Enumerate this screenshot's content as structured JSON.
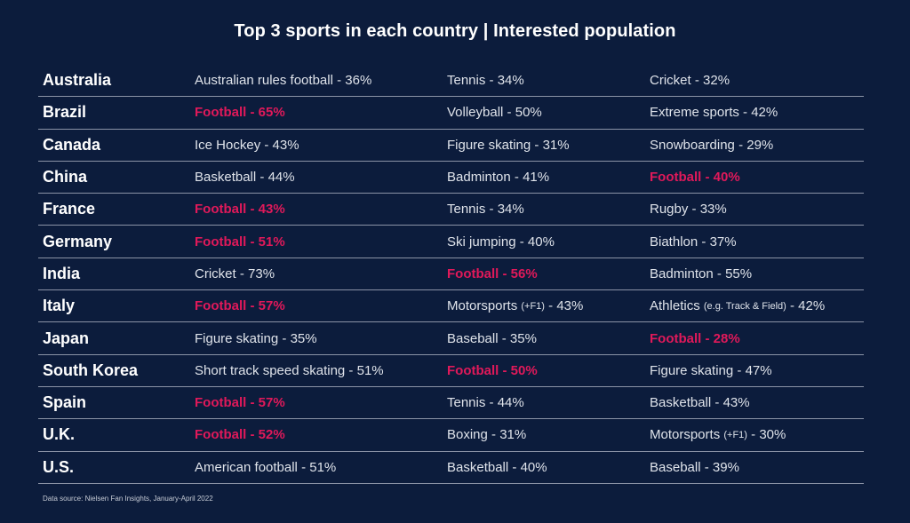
{
  "title": "Top 3 sports in each country | Interested population",
  "source": "Data source: Nielsen Fan Insights, January-April 2022",
  "colors": {
    "background": "#0c1c3c",
    "highlight": "#e0195a",
    "text": "#dfe3ea",
    "divider": "#8b93a6"
  },
  "chart_data": {
    "type": "table",
    "title": "Top 3 sports in each country | Interested population",
    "highlight_rule": "Football entries shown in red",
    "rows": [
      {
        "country": "Australia",
        "cells": [
          {
            "sport": "Australian rules football",
            "note": "",
            "value": "36%",
            "highlight": false
          },
          {
            "sport": "Tennis",
            "note": "",
            "value": "34%",
            "highlight": false
          },
          {
            "sport": "Cricket",
            "note": "",
            "value": "32%",
            "highlight": false
          }
        ]
      },
      {
        "country": "Brazil",
        "cells": [
          {
            "sport": "Football",
            "note": "",
            "value": "65%",
            "highlight": true
          },
          {
            "sport": "Volleyball",
            "note": "",
            "value": "50%",
            "highlight": false
          },
          {
            "sport": "Extreme sports",
            "note": "",
            "value": "42%",
            "highlight": false
          }
        ]
      },
      {
        "country": "Canada",
        "cells": [
          {
            "sport": "Ice Hockey",
            "note": "",
            "value": "43%",
            "highlight": false
          },
          {
            "sport": "Figure skating",
            "note": "",
            "value": "31%",
            "highlight": false
          },
          {
            "sport": "Snowboarding",
            "note": "",
            "value": "29%",
            "highlight": false
          }
        ]
      },
      {
        "country": "China",
        "cells": [
          {
            "sport": "Basketball",
            "note": "",
            "value": "44%",
            "highlight": false
          },
          {
            "sport": "Badminton",
            "note": "",
            "value": "41%",
            "highlight": false
          },
          {
            "sport": "Football",
            "note": "",
            "value": "40%",
            "highlight": true
          }
        ]
      },
      {
        "country": "France",
        "cells": [
          {
            "sport": "Football",
            "note": "",
            "value": "43%",
            "highlight": true
          },
          {
            "sport": "Tennis",
            "note": "",
            "value": "34%",
            "highlight": false
          },
          {
            "sport": "Rugby",
            "note": "",
            "value": "33%",
            "highlight": false
          }
        ]
      },
      {
        "country": "Germany",
        "cells": [
          {
            "sport": "Football",
            "note": "",
            "value": "51%",
            "highlight": true
          },
          {
            "sport": "Ski jumping",
            "note": "",
            "value": "40%",
            "highlight": false
          },
          {
            "sport": "Biathlon",
            "note": "",
            "value": "37%",
            "highlight": false
          }
        ]
      },
      {
        "country": "India",
        "cells": [
          {
            "sport": "Cricket",
            "note": "",
            "value": "73%",
            "highlight": false
          },
          {
            "sport": "Football",
            "note": "",
            "value": "56%",
            "highlight": true
          },
          {
            "sport": "Badminton",
            "note": "",
            "value": "55%",
            "highlight": false
          }
        ]
      },
      {
        "country": "Italy",
        "cells": [
          {
            "sport": "Football",
            "note": "",
            "value": "57%",
            "highlight": true
          },
          {
            "sport": "Motorsports",
            "note": "(+F1)",
            "value": "43%",
            "highlight": false
          },
          {
            "sport": "Athletics",
            "note": "(e.g. Track & Field)",
            "value": "42%",
            "highlight": false
          }
        ]
      },
      {
        "country": "Japan",
        "cells": [
          {
            "sport": "Figure skating",
            "note": "",
            "value": "35%",
            "highlight": false
          },
          {
            "sport": "Baseball",
            "note": "",
            "value": "35%",
            "highlight": false
          },
          {
            "sport": "Football",
            "note": "",
            "value": "28%",
            "highlight": true
          }
        ]
      },
      {
        "country": "South Korea",
        "cells": [
          {
            "sport": "Short track speed skating",
            "note": "",
            "value": "51%",
            "highlight": false
          },
          {
            "sport": "Football",
            "note": "",
            "value": "50%",
            "highlight": true
          },
          {
            "sport": "Figure skating",
            "note": "",
            "value": "47%",
            "highlight": false
          }
        ]
      },
      {
        "country": "Spain",
        "cells": [
          {
            "sport": "Football",
            "note": "",
            "value": "57%",
            "highlight": true
          },
          {
            "sport": "Tennis",
            "note": "",
            "value": "44%",
            "highlight": false
          },
          {
            "sport": "Basketball",
            "note": "",
            "value": "43%",
            "highlight": false
          }
        ]
      },
      {
        "country": "U.K.",
        "cells": [
          {
            "sport": "Football",
            "note": "",
            "value": "52%",
            "highlight": true
          },
          {
            "sport": "Boxing",
            "note": "",
            "value": "31%",
            "highlight": false
          },
          {
            "sport": "Motorsports",
            "note": "(+F1)",
            "value": "30%",
            "highlight": false
          }
        ]
      },
      {
        "country": "U.S.",
        "cells": [
          {
            "sport": "American football",
            "note": "",
            "value": "51%",
            "highlight": false
          },
          {
            "sport": "Basketball",
            "note": "",
            "value": "40%",
            "highlight": false
          },
          {
            "sport": "Baseball",
            "note": "",
            "value": "39%",
            "highlight": false
          }
        ]
      }
    ]
  }
}
